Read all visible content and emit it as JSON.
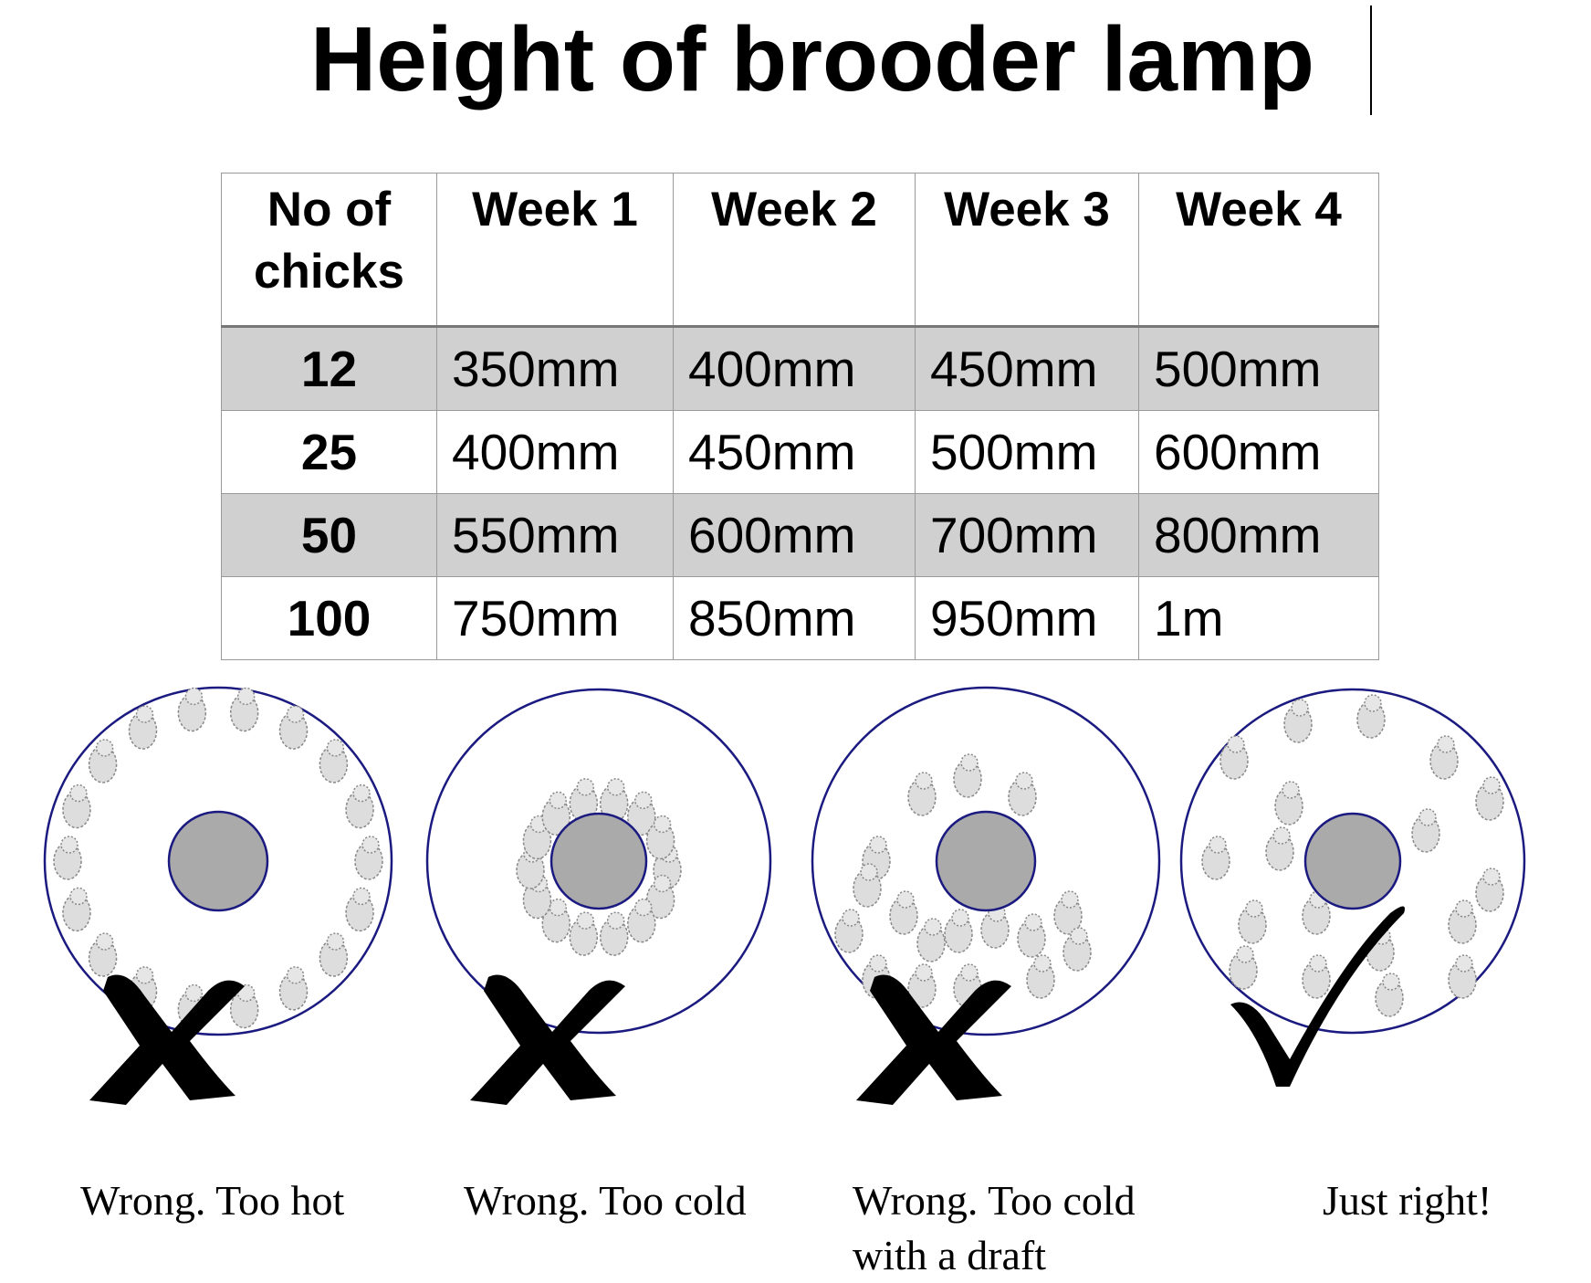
{
  "title": "Height of brooder lamp",
  "table": {
    "header": [
      "No of chicks",
      "Week 1",
      "Week 2",
      "Week 3",
      "Week 4"
    ],
    "rows": [
      [
        "12",
        "350mm",
        "400mm",
        "450mm",
        "500mm"
      ],
      [
        "25",
        "400mm",
        "450mm",
        "500mm",
        "600mm"
      ],
      [
        "50",
        "550mm",
        "600mm",
        "700mm",
        "800mm"
      ],
      [
        "100",
        "750mm",
        "850mm",
        "950mm",
        "1m"
      ]
    ]
  },
  "diagrams": [
    {
      "caption": "Wrong. Too hot"
    },
    {
      "caption": "Wrong. Too cold"
    },
    {
      "caption": "Wrong. Too cold with a draft"
    },
    {
      "caption": "Just right!"
    }
  ]
}
